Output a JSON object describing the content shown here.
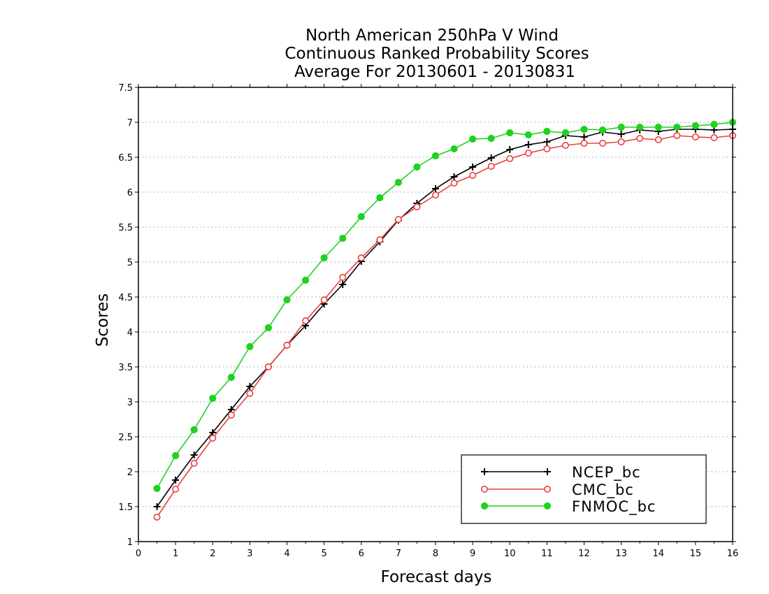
{
  "chart_data": {
    "type": "line",
    "title": [
      "North American 250hPa V Wind",
      "Continuous Ranked Probability Scores",
      "Average For 20130601 - 20130831"
    ],
    "xlabel": "Forecast days",
    "ylabel": "Scores",
    "xlim": [
      0,
      16
    ],
    "ylim": [
      1,
      7.5
    ],
    "xticks": [
      "0",
      "1",
      "2",
      "3",
      "4",
      "5",
      "6",
      "7",
      "8",
      "9",
      "10",
      "11",
      "12",
      "13",
      "14",
      "15",
      "16"
    ],
    "yticks": [
      "1",
      "1.5",
      "2",
      "2.5",
      "3",
      "3.5",
      "4",
      "4.5",
      "5",
      "5.5",
      "6",
      "6.5",
      "7",
      "7.5"
    ],
    "grid": "horizontal dotted",
    "legend_position": "bottom-right",
    "x": [
      0.5,
      1,
      1.5,
      2,
      2.5,
      3,
      3.5,
      4,
      4.5,
      5,
      5.5,
      6,
      6.5,
      7,
      7.5,
      8,
      8.5,
      9,
      9.5,
      10,
      10.5,
      11,
      11.5,
      12,
      12.5,
      13,
      13.5,
      14,
      14.5,
      15,
      15.5,
      16
    ],
    "series": [
      {
        "name": "NCEP_bc",
        "color": "#000000",
        "marker": "plus",
        "values": [
          1.5,
          1.88,
          2.24,
          2.56,
          2.89,
          3.22,
          3.5,
          3.81,
          4.09,
          4.4,
          4.68,
          5.01,
          5.29,
          5.6,
          5.84,
          6.05,
          6.22,
          6.36,
          6.49,
          6.61,
          6.68,
          6.72,
          6.81,
          6.79,
          6.86,
          6.83,
          6.89,
          6.87,
          6.9,
          6.9,
          6.89,
          6.9
        ]
      },
      {
        "name": "CMC_bc",
        "color": "#e8413f",
        "marker": "open-circle",
        "values": [
          1.35,
          1.75,
          2.12,
          2.48,
          2.81,
          3.12,
          3.5,
          3.81,
          4.16,
          4.46,
          4.78,
          5.06,
          5.32,
          5.61,
          5.79,
          5.96,
          6.13,
          6.24,
          6.37,
          6.48,
          6.56,
          6.62,
          6.67,
          6.7,
          6.7,
          6.72,
          6.77,
          6.75,
          6.81,
          6.79,
          6.78,
          6.81
        ]
      },
      {
        "name": "FNMOC_bc",
        "color": "#1ed21e",
        "marker": "filled-circle",
        "values": [
          1.76,
          2.23,
          2.6,
          3.05,
          3.35,
          3.79,
          4.06,
          4.46,
          4.74,
          5.06,
          5.34,
          5.65,
          5.92,
          6.14,
          6.36,
          6.52,
          6.62,
          6.76,
          6.77,
          6.85,
          6.82,
          6.87,
          6.85,
          6.9,
          6.89,
          6.93,
          6.93,
          6.93,
          6.93,
          6.95,
          6.97,
          7.0
        ]
      }
    ]
  }
}
